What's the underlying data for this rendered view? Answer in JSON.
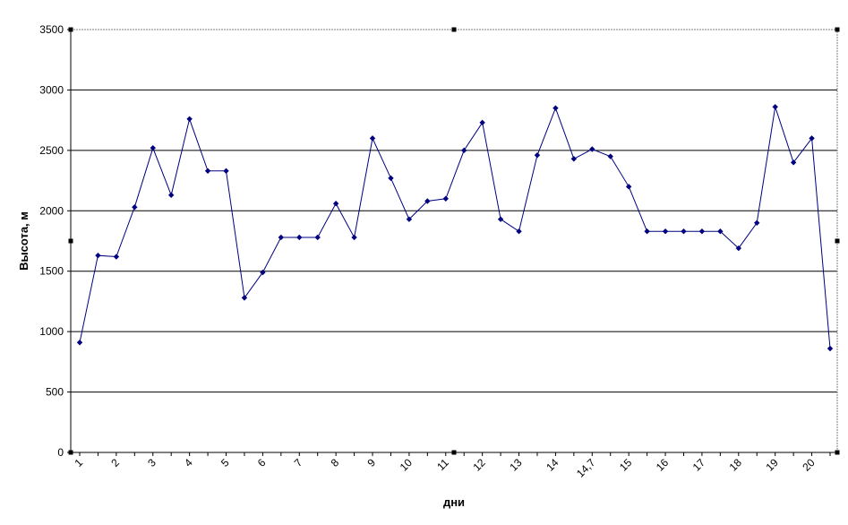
{
  "chart_data": {
    "type": "line",
    "title": "",
    "xlabel": "дни",
    "ylabel": "Высота, м",
    "ylim": [
      0,
      3500
    ],
    "yticks": [
      0,
      500,
      1000,
      1500,
      2000,
      2500,
      3000,
      3500
    ],
    "grid": "horizontal",
    "legend": "none",
    "line_color": "#000080",
    "marker_color": "#000080",
    "x_tick_labels": [
      {
        "i": 0,
        "label": "1"
      },
      {
        "i": 2,
        "label": "2"
      },
      {
        "i": 4,
        "label": "3"
      },
      {
        "i": 6,
        "label": "4"
      },
      {
        "i": 8,
        "label": "5"
      },
      {
        "i": 10,
        "label": "6"
      },
      {
        "i": 12,
        "label": "7"
      },
      {
        "i": 14,
        "label": "8"
      },
      {
        "i": 16,
        "label": "9"
      },
      {
        "i": 18,
        "label": "10"
      },
      {
        "i": 20,
        "label": "11"
      },
      {
        "i": 22,
        "label": "12"
      },
      {
        "i": 24,
        "label": "13"
      },
      {
        "i": 26,
        "label": "14"
      },
      {
        "i": 28,
        "label": "14,7"
      },
      {
        "i": 30,
        "label": "15"
      },
      {
        "i": 32,
        "label": "16"
      },
      {
        "i": 34,
        "label": "17"
      },
      {
        "i": 36,
        "label": "18"
      },
      {
        "i": 38,
        "label": "19"
      },
      {
        "i": 40,
        "label": "20"
      }
    ],
    "values": [
      910,
      1630,
      1620,
      2030,
      2520,
      2130,
      2760,
      2330,
      2330,
      1280,
      1490,
      1780,
      1780,
      1780,
      2060,
      1780,
      2600,
      2270,
      1930,
      2080,
      2100,
      2500,
      2730,
      1930,
      1830,
      2460,
      2850,
      2430,
      2510,
      2450,
      2200,
      1830,
      1830,
      1830,
      1830,
      1830,
      1690,
      1900,
      2860,
      2400,
      2600,
      860
    ]
  }
}
